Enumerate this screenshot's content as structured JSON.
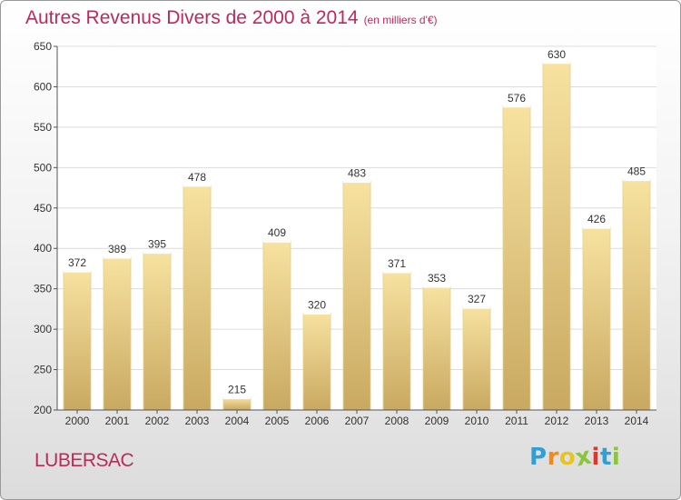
{
  "chart_data": {
    "type": "bar",
    "title": "Autres Revenus Divers de 2000 à 2014",
    "subtitle": "(en milliers d'€)",
    "categories": [
      "2000",
      "2001",
      "2002",
      "2003",
      "2004",
      "2005",
      "2006",
      "2007",
      "2008",
      "2009",
      "2010",
      "2011",
      "2012",
      "2013",
      "2014"
    ],
    "values": [
      372,
      389,
      395,
      478,
      215,
      409,
      320,
      483,
      371,
      353,
      327,
      576,
      630,
      426,
      485
    ],
    "ylim": [
      200,
      650
    ],
    "yticks": [
      200,
      250,
      300,
      350,
      400,
      450,
      500,
      550,
      600,
      650
    ],
    "grid": true,
    "xlabel": "",
    "ylabel": ""
  },
  "location": "LUBERSAC",
  "brand": {
    "letters": [
      "P",
      "r",
      "o",
      "x",
      "i",
      "t",
      "i"
    ],
    "colors": [
      "#2f9fd8",
      "#f08a1c",
      "#e8c420",
      "#8cc43c",
      "#e2342c",
      "#2f9fd8",
      "#8cc43c"
    ]
  },
  "colors": {
    "title": "#c0285a",
    "bar_light": "#f7e2a0",
    "bar_dark": "#c9a961",
    "grid": "#dcdcdc",
    "axis": "#555555",
    "label": "#333333"
  }
}
